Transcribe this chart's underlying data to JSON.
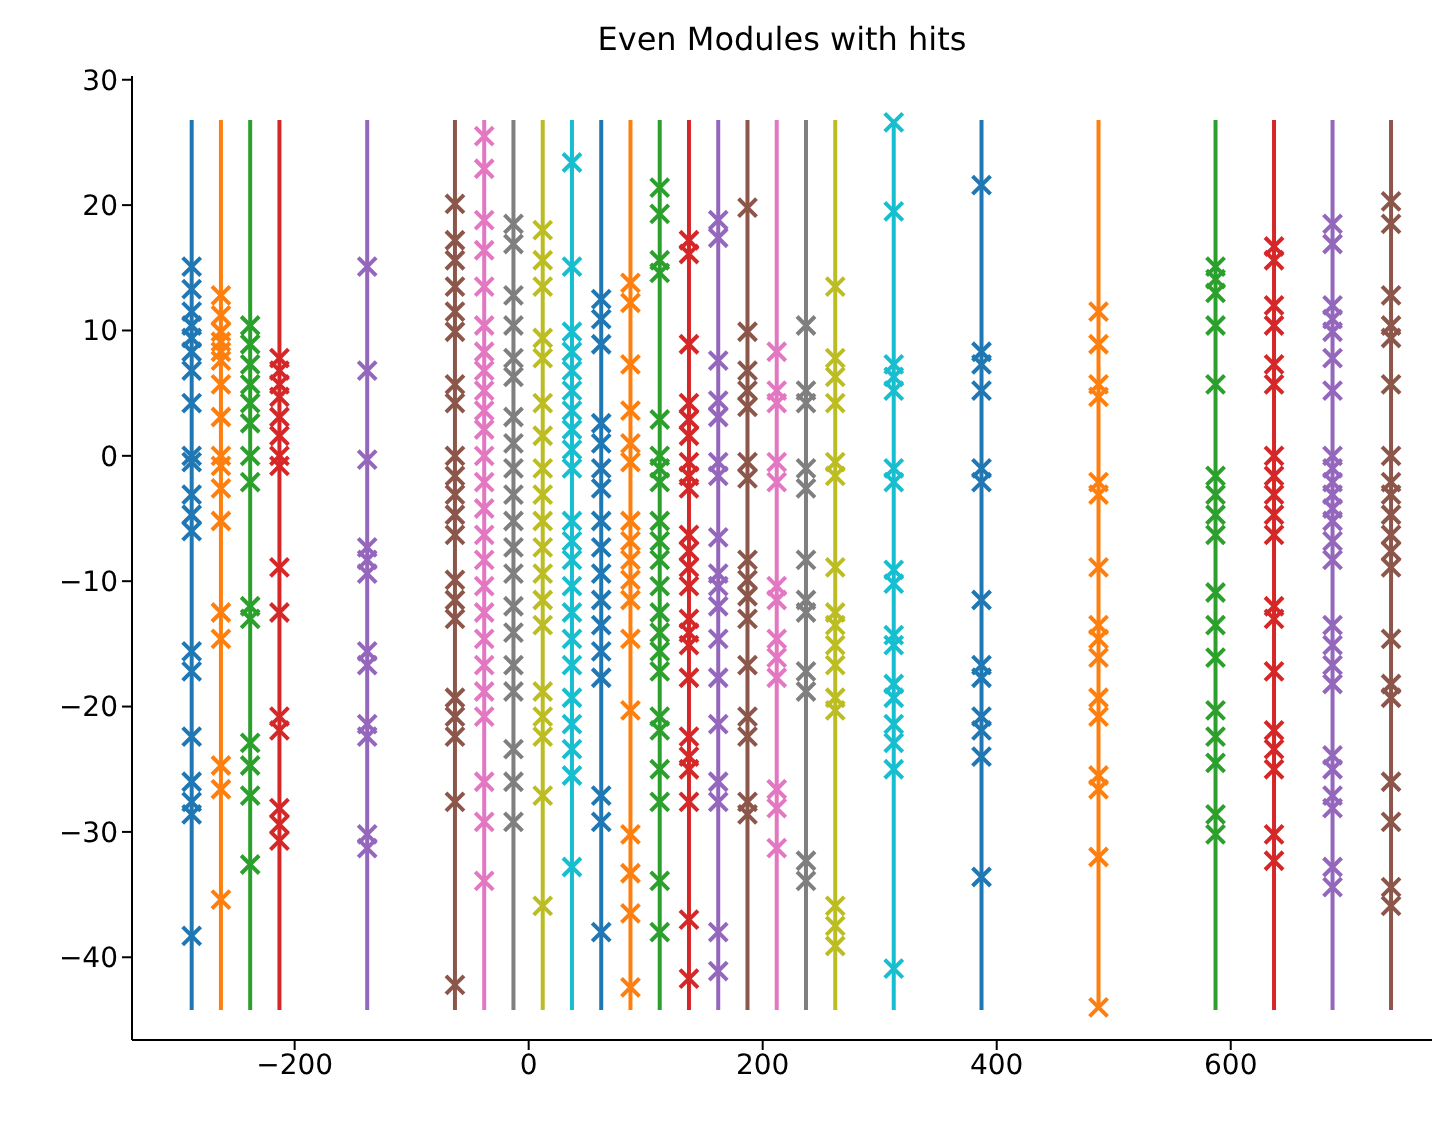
{
  "chart_data": {
    "type": "scatter",
    "title": "Even Modules with hits",
    "xlim": [
      -339,
      772
    ],
    "ylim": [
      -46.6,
      30.3
    ],
    "xticks": [
      -200,
      0,
      200,
      400,
      600
    ],
    "yticks": [
      -40,
      -30,
      -20,
      -10,
      0,
      10,
      20,
      30
    ],
    "series": [
      {
        "type": "line",
        "marker": "none",
        "color": "#1f77b4",
        "x": [
          -288,
          -288
        ],
        "values": [
          -44.2,
          26.8
        ]
      },
      {
        "type": "scatter",
        "marker": "cross",
        "color": "#1f77b4",
        "x": [
          -288,
          -288,
          -288,
          -288,
          -288,
          -288,
          -288,
          -288,
          -288,
          -288,
          -288,
          -288,
          -288,
          -288,
          -288,
          -288,
          -288,
          -288,
          -288,
          -288
        ],
        "values": [
          15.1,
          13.3,
          11.5,
          10.4,
          9.4,
          8.3,
          6.8,
          4.2,
          0,
          -0.5,
          -3.1,
          -4.7,
          -6.0,
          -15.6,
          -17.2,
          -22.4,
          -26.0,
          -27.6,
          -28.6,
          -38.3
        ]
      },
      {
        "type": "line",
        "marker": "none",
        "color": "#ff7f0e",
        "x": [
          -263,
          -263
        ],
        "values": [
          -44.2,
          26.8
        ]
      },
      {
        "type": "scatter",
        "marker": "cross",
        "color": "#ff7f0e",
        "x": [
          -263,
          -263,
          -263,
          -263,
          -263,
          -263,
          -263,
          -263,
          -263,
          -263,
          -263,
          -263,
          -263,
          -263,
          -263,
          -263,
          -263
        ],
        "values": [
          12.8,
          11.2,
          9.9,
          9.1,
          8.3,
          7.6,
          5.7,
          3.1,
          0,
          -0.8,
          -2.6,
          -5.2,
          -12.5,
          -14.6,
          -24.7,
          -26.6,
          -35.4
        ]
      },
      {
        "type": "line",
        "marker": "none",
        "color": "#2ca02c",
        "x": [
          -238,
          -238
        ],
        "values": [
          -44.2,
          26.8
        ]
      },
      {
        "type": "scatter",
        "marker": "cross",
        "color": "#2ca02c",
        "x": [
          -238,
          -238,
          -238,
          -238,
          -238,
          -238,
          -238,
          -238,
          -238,
          -238,
          -238,
          -238,
          -238,
          -238
        ],
        "values": [
          10.4,
          8.9,
          7.3,
          5.7,
          4.2,
          2.6,
          0,
          -2.1,
          -12.0,
          -13.0,
          -22.9,
          -24.7,
          -27.1,
          -32.6
        ]
      },
      {
        "type": "line",
        "marker": "none",
        "color": "#d62728",
        "x": [
          -213,
          -213
        ],
        "values": [
          -44.2,
          26.8
        ]
      },
      {
        "type": "scatter",
        "marker": "cross",
        "color": "#d62728",
        "x": [
          -213,
          -213,
          -213,
          -213,
          -213,
          -213,
          -213,
          -213,
          -213,
          -213,
          -213,
          -213,
          -213,
          -213,
          -213
        ],
        "values": [
          7.8,
          6.8,
          5.7,
          4.7,
          3.1,
          1.6,
          0,
          -0.8,
          -8.9,
          -12.5,
          -20.8,
          -21.9,
          -28.1,
          -29.4,
          -30.7
        ]
      },
      {
        "type": "line",
        "marker": "none",
        "color": "#9467bd",
        "x": [
          -138,
          -138
        ],
        "values": [
          -44.2,
          26.8
        ]
      },
      {
        "type": "scatter",
        "marker": "cross",
        "color": "#9467bd",
        "x": [
          -138,
          -138,
          -138,
          -138,
          -138,
          -138,
          -138,
          -138,
          -138,
          -138,
          -138,
          -138
        ],
        "values": [
          15.1,
          6.8,
          -0.3,
          -7.3,
          -8.3,
          -9.4,
          -15.6,
          -16.7,
          -21.4,
          -22.4,
          -30.2,
          -31.3
        ]
      },
      {
        "type": "line",
        "marker": "none",
        "color": "#8c564b",
        "x": [
          -63,
          -63
        ],
        "values": [
          -44.2,
          26.8
        ]
      },
      {
        "type": "scatter",
        "marker": "cross",
        "color": "#8c564b",
        "x": [
          -63,
          -63,
          -63,
          -63,
          -63,
          -63,
          -63,
          -63,
          -63,
          -63,
          -63,
          -63,
          -63,
          -63,
          -63,
          -63,
          -63,
          -63,
          -63,
          -63,
          -63
        ],
        "values": [
          20.1,
          17.2,
          15.6,
          13.5,
          11.5,
          9.9,
          5.7,
          4.2,
          0,
          -1.6,
          -3.1,
          -4.7,
          -6.3,
          -9.9,
          -11.5,
          -13.0,
          -19.3,
          -20.8,
          -22.4,
          -27.6,
          -42.2
        ]
      },
      {
        "type": "line",
        "marker": "none",
        "color": "#e377c2",
        "x": [
          -38,
          -38
        ],
        "values": [
          -44.2,
          26.8
        ]
      },
      {
        "type": "scatter",
        "marker": "cross",
        "color": "#e377c2",
        "x": [
          -38,
          -38,
          -38,
          -38,
          -38,
          -38,
          -38,
          -38,
          -38,
          -38,
          -38,
          -38,
          -38,
          -38,
          -38,
          -38,
          -38,
          -38,
          -38,
          -38,
          -38,
          -38,
          -38,
          -38,
          -38
        ],
        "values": [
          25.5,
          22.9,
          18.8,
          16.4,
          13.5,
          10.4,
          8.3,
          6.8,
          5.2,
          3.6,
          2.1,
          0,
          -2.1,
          -4.2,
          -6.3,
          -8.3,
          -10.4,
          -12.5,
          -14.6,
          -16.7,
          -18.8,
          -20.8,
          -26.0,
          -29.2,
          -33.9
        ]
      },
      {
        "type": "line",
        "marker": "none",
        "color": "#7f7f7f",
        "x": [
          -13,
          -13
        ],
        "values": [
          -44.2,
          26.8
        ]
      },
      {
        "type": "scatter",
        "marker": "cross",
        "color": "#7f7f7f",
        "x": [
          -13,
          -13,
          -13,
          -13,
          -13,
          -13,
          -13,
          -13,
          -13,
          -13,
          -13,
          -13,
          -13,
          -13,
          -13,
          -13,
          -13,
          -13,
          -13,
          -13
        ],
        "values": [
          18.5,
          16.9,
          12.8,
          10.4,
          7.8,
          6.3,
          3.1,
          1.0,
          -1.0,
          -3.1,
          -5.2,
          -7.3,
          -9.4,
          -12.0,
          -14.1,
          -16.7,
          -18.8,
          -23.4,
          -26.0,
          -29.2
        ]
      },
      {
        "type": "line",
        "marker": "none",
        "color": "#bcbd22",
        "x": [
          12,
          12
        ],
        "values": [
          -44.2,
          26.8
        ]
      },
      {
        "type": "scatter",
        "marker": "cross",
        "color": "#bcbd22",
        "x": [
          12,
          12,
          12,
          12,
          12,
          12,
          12,
          12,
          12,
          12,
          12,
          12,
          12,
          12,
          12,
          12,
          12,
          12,
          12
        ],
        "values": [
          18.0,
          15.6,
          13.5,
          9.4,
          7.8,
          4.2,
          1.6,
          -1.0,
          -3.1,
          -5.2,
          -7.3,
          -9.4,
          -11.5,
          -13.5,
          -18.8,
          -20.8,
          -22.4,
          -27.1,
          -35.9
        ]
      },
      {
        "type": "line",
        "marker": "none",
        "color": "#17becf",
        "x": [
          37,
          37
        ],
        "values": [
          -44.2,
          26.8
        ]
      },
      {
        "type": "scatter",
        "marker": "cross",
        "color": "#17becf",
        "x": [
          37,
          37,
          37,
          37,
          37,
          37,
          37,
          37,
          37,
          37,
          37,
          37,
          37,
          37,
          37,
          37,
          37,
          37,
          37,
          37,
          37,
          37
        ],
        "values": [
          23.4,
          15.1,
          9.9,
          8.3,
          6.8,
          5.2,
          3.6,
          2.1,
          0.5,
          -1.0,
          -5.2,
          -6.8,
          -8.3,
          -10.4,
          -12.5,
          -14.6,
          -16.7,
          -19.3,
          -21.4,
          -23.4,
          -25.5,
          -32.8
        ]
      },
      {
        "type": "line",
        "marker": "none",
        "color": "#1f77b4",
        "x": [
          62,
          62
        ],
        "values": [
          -44.2,
          26.8
        ]
      },
      {
        "type": "scatter",
        "marker": "cross",
        "color": "#1f77b4",
        "x": [
          62,
          62,
          62,
          62,
          62,
          62,
          62,
          62,
          62,
          62,
          62,
          62,
          62,
          62,
          62,
          62,
          62
        ],
        "values": [
          12.5,
          10.9,
          8.9,
          2.6,
          1.0,
          -1.0,
          -2.6,
          -5.2,
          -7.3,
          -9.4,
          -11.5,
          -13.5,
          -15.6,
          -17.7,
          -27.1,
          -29.2,
          -38.0
        ]
      },
      {
        "type": "line",
        "marker": "none",
        "color": "#ff7f0e",
        "x": [
          87,
          87
        ],
        "values": [
          -44.2,
          26.8
        ]
      },
      {
        "type": "scatter",
        "marker": "cross",
        "color": "#ff7f0e",
        "x": [
          87,
          87,
          87,
          87,
          87,
          87,
          87,
          87,
          87,
          87,
          87,
          87,
          87,
          87,
          87,
          87,
          87
        ],
        "values": [
          13.8,
          12.2,
          7.3,
          3.6,
          1.0,
          -0.5,
          -5.2,
          -6.8,
          -8.3,
          -9.9,
          -11.5,
          -14.6,
          -20.3,
          -30.2,
          -33.3,
          -36.5,
          -42.4
        ]
      },
      {
        "type": "line",
        "marker": "none",
        "color": "#2ca02c",
        "x": [
          112,
          112
        ],
        "values": [
          -44.2,
          26.8
        ]
      },
      {
        "type": "scatter",
        "marker": "cross",
        "color": "#2ca02c",
        "x": [
          112,
          112,
          112,
          112,
          112,
          112,
          112,
          112,
          112,
          112,
          112,
          112,
          112,
          112,
          112,
          112,
          112,
          112,
          112,
          112,
          112,
          112
        ],
        "values": [
          21.4,
          19.3,
          15.6,
          14.6,
          2.9,
          0,
          -1.0,
          -2.1,
          -5.2,
          -6.8,
          -8.3,
          -10.4,
          -12.5,
          -14.1,
          -15.6,
          -17.2,
          -20.8,
          -21.9,
          -25.0,
          -27.6,
          -33.9,
          -38.0
        ]
      },
      {
        "type": "line",
        "marker": "none",
        "color": "#d62728",
        "x": [
          137,
          137
        ],
        "values": [
          -44.2,
          26.8
        ]
      },
      {
        "type": "scatter",
        "marker": "cross",
        "color": "#d62728",
        "x": [
          137,
          137,
          137,
          137,
          137,
          137,
          137,
          137,
          137,
          137,
          137,
          137,
          137,
          137,
          137,
          137,
          137,
          137,
          137,
          137,
          137,
          137,
          137
        ],
        "values": [
          17.2,
          16.1,
          8.9,
          4.2,
          2.9,
          1.6,
          -0.5,
          -1.6,
          -2.6,
          -6.3,
          -7.6,
          -8.9,
          -10.4,
          -13.0,
          -14.1,
          -15.1,
          -17.7,
          -22.4,
          -24.0,
          -25.0,
          -27.6,
          -37.0,
          -41.7
        ]
      },
      {
        "type": "line",
        "marker": "none",
        "color": "#9467bd",
        "x": [
          162,
          162
        ],
        "values": [
          -44.2,
          26.8
        ]
      },
      {
        "type": "scatter",
        "marker": "cross",
        "color": "#9467bd",
        "x": [
          162,
          162,
          162,
          162,
          162,
          162,
          162,
          162,
          162,
          162,
          162,
          162,
          162,
          162,
          162,
          162,
          162,
          162
        ],
        "values": [
          18.8,
          17.4,
          7.6,
          4.4,
          3.1,
          -0.5,
          -1.6,
          -6.5,
          -9.4,
          -10.4,
          -12.0,
          -14.6,
          -17.7,
          -21.4,
          -26.0,
          -27.6,
          -38.0,
          -41.1
        ]
      },
      {
        "type": "line",
        "marker": "none",
        "color": "#8c564b",
        "x": [
          187,
          187
        ],
        "values": [
          -44.2,
          26.8
        ]
      },
      {
        "type": "scatter",
        "marker": "cross",
        "color": "#8c564b",
        "x": [
          187,
          187,
          187,
          187,
          187,
          187,
          187,
          187,
          187,
          187,
          187,
          187,
          187,
          187,
          187,
          187
        ],
        "values": [
          19.8,
          9.9,
          6.8,
          5.2,
          3.9,
          -0.5,
          -1.8,
          -8.3,
          -9.9,
          -11.2,
          -13.0,
          -16.7,
          -20.8,
          -22.4,
          -27.6,
          -28.6
        ]
      },
      {
        "type": "line",
        "marker": "none",
        "color": "#e377c2",
        "x": [
          212,
          212
        ],
        "values": [
          -44.2,
          26.8
        ]
      },
      {
        "type": "scatter",
        "marker": "cross",
        "color": "#e377c2",
        "x": [
          212,
          212,
          212,
          212,
          212,
          212,
          212,
          212,
          212,
          212,
          212,
          212,
          212
        ],
        "values": [
          8.3,
          5.2,
          4.2,
          -0.5,
          -2.1,
          -10.4,
          -11.5,
          -14.6,
          -16.1,
          -17.7,
          -26.6,
          -28.1,
          -31.3
        ]
      },
      {
        "type": "line",
        "marker": "none",
        "color": "#7f7f7f",
        "x": [
          237,
          237
        ],
        "values": [
          -44.2,
          26.8
        ]
      },
      {
        "type": "scatter",
        "marker": "cross",
        "color": "#7f7f7f",
        "x": [
          237,
          237,
          237,
          237,
          237,
          237,
          237,
          237,
          237,
          237,
          237,
          237
        ],
        "values": [
          10.4,
          5.2,
          4.2,
          -1.0,
          -2.6,
          -8.3,
          -11.5,
          -12.5,
          -17.2,
          -18.8,
          -32.3,
          -33.9
        ]
      },
      {
        "type": "line",
        "marker": "none",
        "color": "#bcbd22",
        "x": [
          262,
          262
        ],
        "values": [
          -44.2,
          26.8
        ]
      },
      {
        "type": "scatter",
        "marker": "cross",
        "color": "#bcbd22",
        "x": [
          262,
          262,
          262,
          262,
          262,
          262,
          262,
          262,
          262,
          262,
          262,
          262,
          262,
          262,
          262,
          262
        ],
        "values": [
          13.5,
          7.8,
          6.3,
          4.2,
          -0.5,
          -1.6,
          -8.9,
          -12.5,
          -13.5,
          -15.1,
          -16.7,
          -19.3,
          -20.3,
          -35.9,
          -37.5,
          -39.1
        ]
      },
      {
        "type": "line",
        "marker": "none",
        "color": "#17becf",
        "x": [
          312,
          312
        ],
        "values": [
          -44.2,
          26.8
        ]
      },
      {
        "type": "scatter",
        "marker": "cross",
        "color": "#17becf",
        "x": [
          312,
          312,
          312,
          312,
          312,
          312,
          312,
          312,
          312,
          312,
          312,
          312,
          312,
          312,
          312,
          312,
          312
        ],
        "values": [
          26.6,
          19.5,
          7.3,
          6.3,
          5.2,
          -1.0,
          -2.1,
          -9.1,
          -10.2,
          -14.3,
          -15.1,
          -18.2,
          -19.3,
          -21.4,
          -22.9,
          -25.0,
          -40.9
        ]
      },
      {
        "type": "line",
        "marker": "none",
        "color": "#1f77b4",
        "x": [
          387,
          387
        ],
        "values": [
          -44.2,
          26.8
        ]
      },
      {
        "type": "scatter",
        "marker": "cross",
        "color": "#1f77b4",
        "x": [
          387,
          387,
          387,
          387,
          387,
          387,
          387,
          387,
          387,
          387,
          387,
          387,
          387
        ],
        "values": [
          21.6,
          8.3,
          7.3,
          5.2,
          -1.0,
          -2.1,
          -11.5,
          -16.7,
          -17.7,
          -20.8,
          -21.9,
          -24.0,
          -33.6
        ]
      },
      {
        "type": "line",
        "marker": "none",
        "color": "#ff7f0e",
        "x": [
          487,
          487
        ],
        "values": [
          -44.2,
          26.8
        ]
      },
      {
        "type": "scatter",
        "marker": "cross",
        "color": "#ff7f0e",
        "x": [
          487,
          487,
          487,
          487,
          487,
          487,
          487,
          487,
          487,
          487,
          487,
          487,
          487,
          487,
          487,
          487
        ],
        "values": [
          11.5,
          8.9,
          5.7,
          4.7,
          -2.1,
          -3.1,
          -8.9,
          -13.5,
          -14.6,
          -16.1,
          -19.3,
          -20.8,
          -25.5,
          -26.6,
          -32.0,
          -44.0
        ]
      },
      {
        "type": "line",
        "marker": "none",
        "color": "#2ca02c",
        "x": [
          587,
          587
        ],
        "values": [
          -44.2,
          26.8
        ]
      },
      {
        "type": "scatter",
        "marker": "cross",
        "color": "#2ca02c",
        "x": [
          587,
          587,
          587,
          587,
          587,
          587,
          587,
          587,
          587,
          587,
          587,
          587,
          587,
          587,
          587,
          587,
          587
        ],
        "values": [
          15.1,
          14.1,
          13.0,
          10.4,
          5.7,
          -1.6,
          -3.1,
          -4.7,
          -6.3,
          -10.9,
          -13.5,
          -16.1,
          -20.3,
          -22.4,
          -24.5,
          -28.6,
          -30.2
        ]
      },
      {
        "type": "line",
        "marker": "none",
        "color": "#d62728",
        "x": [
          637,
          637
        ],
        "values": [
          -44.2,
          26.8
        ]
      },
      {
        "type": "scatter",
        "marker": "cross",
        "color": "#d62728",
        "x": [
          637,
          637,
          637,
          637,
          637,
          637,
          637,
          637,
          637,
          637,
          637,
          637,
          637,
          637,
          637,
          637,
          637,
          637,
          637
        ],
        "values": [
          16.7,
          15.6,
          12.0,
          10.4,
          7.3,
          5.7,
          0,
          -1.6,
          -3.1,
          -4.7,
          -6.3,
          -12.0,
          -13.0,
          -17.2,
          -21.9,
          -23.4,
          -25.0,
          -30.2,
          -32.3
        ]
      },
      {
        "type": "line",
        "marker": "none",
        "color": "#9467bd",
        "x": [
          687,
          687
        ],
        "values": [
          -44.2,
          26.8
        ]
      },
      {
        "type": "scatter",
        "marker": "cross",
        "color": "#9467bd",
        "x": [
          687,
          687,
          687,
          687,
          687,
          687,
          687,
          687,
          687,
          687,
          687,
          687,
          687,
          687,
          687,
          687,
          687,
          687,
          687,
          687,
          687,
          687,
          687,
          687,
          687
        ],
        "values": [
          18.5,
          16.9,
          12.0,
          10.9,
          9.9,
          7.8,
          5.2,
          0,
          -1.0,
          -2.1,
          -3.1,
          -4.2,
          -5.2,
          -6.8,
          -8.3,
          -13.5,
          -15.1,
          -16.7,
          -18.2,
          -23.9,
          -25.0,
          -27.1,
          -28.1,
          -32.8,
          -34.4
        ]
      },
      {
        "type": "line",
        "marker": "none",
        "color": "#8c564b",
        "x": [
          737,
          737
        ],
        "values": [
          -44.2,
          26.8
        ]
      },
      {
        "type": "scatter",
        "marker": "cross",
        "color": "#8c564b",
        "x": [
          737,
          737,
          737,
          737,
          737,
          737,
          737,
          737,
          737,
          737,
          737,
          737,
          737,
          737,
          737,
          737,
          737,
          737,
          737,
          737
        ],
        "values": [
          20.3,
          18.5,
          12.8,
          10.4,
          9.4,
          5.7,
          0,
          -2.1,
          -3.1,
          -4.7,
          -6.3,
          -7.6,
          -8.9,
          -14.6,
          -18.2,
          -19.3,
          -26.0,
          -29.2,
          -34.4,
          -35.9
        ]
      }
    ]
  }
}
